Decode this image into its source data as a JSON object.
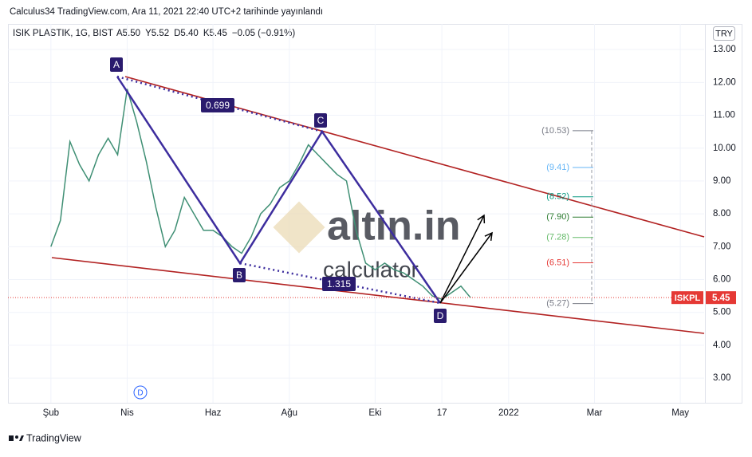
{
  "header": {
    "publisher": "Calculus34 TradingView.com, Ara 11, 2021 22:40 UTC+2 tarihinde yayınlandı",
    "symbol": "ISIK PLASTIK, 1G, BIST",
    "ohlc": [
      "A5.50",
      "Y5.52",
      "D5.40",
      "K5.45",
      "−0.05 (−0.91%)"
    ],
    "currency": "TRY"
  },
  "chart_data": {
    "type": "line",
    "color": "#3f8f74",
    "categories": [
      null,
      null,
      null,
      null,
      "Şub",
      null,
      null,
      null,
      null,
      null,
      null,
      null,
      "Nis",
      null,
      null,
      null,
      null,
      null,
      null,
      null,
      null,
      "Haz",
      null,
      null,
      null,
      null,
      null,
      null,
      null,
      "Ağu",
      null,
      null,
      null,
      null,
      null,
      null,
      null,
      null,
      "Eki",
      null,
      null,
      null,
      null,
      null,
      null,
      "17",
      null,
      null,
      null,
      null,
      null,
      null,
      "2022",
      null,
      null,
      null,
      null,
      null,
      null,
      null,
      null,
      "Mar",
      null,
      null,
      null,
      null,
      null,
      null,
      null,
      null,
      "May",
      null,
      null
    ],
    "values": [
      null,
      null,
      null,
      null,
      7.0,
      7.8,
      10.2,
      9.5,
      9.0,
      9.8,
      10.3,
      9.8,
      11.8,
      10.8,
      9.6,
      8.2,
      7.0,
      7.5,
      8.5,
      8.0,
      7.5,
      7.5,
      7.3,
      7.0,
      6.8,
      7.3,
      8.0,
      8.3,
      8.8,
      9.0,
      9.5,
      10.1,
      9.8,
      9.5,
      9.2,
      9.0,
      7.5,
      6.5,
      6.3,
      6.5,
      6.3,
      6.2,
      6.0,
      5.8,
      5.5,
      5.4,
      5.6,
      5.8,
      5.45,
      null,
      null,
      null,
      null,
      null,
      null,
      null,
      null,
      null,
      null,
      null,
      null,
      null,
      null,
      null,
      null,
      null,
      null,
      null,
      null,
      null,
      null,
      null,
      null
    ],
    "ylim": [
      2.25,
      13.78
    ],
    "yticks": [
      {
        "value": 3,
        "label": "3.00"
      },
      {
        "value": 4,
        "label": "4.00"
      },
      {
        "value": 5,
        "label": "5.00"
      },
      {
        "value": 6,
        "label": "6.00"
      },
      {
        "value": 7,
        "label": "7.00"
      },
      {
        "value": 8,
        "label": "8.00"
      },
      {
        "value": 9,
        "label": "9.00"
      },
      {
        "value": 10,
        "label": "10.00"
      },
      {
        "value": 11,
        "label": "11.00"
      },
      {
        "value": 12,
        "label": "12.00"
      },
      {
        "value": 13,
        "label": "13.00"
      }
    ],
    "grid": true,
    "last_price": {
      "ticker": "ISKPL",
      "value": 5.45,
      "label": "5.45",
      "color": "#e53935"
    },
    "levels": [
      {
        "value": 10.53,
        "label": "(10.53)",
        "color": "#787b86"
      },
      {
        "value": 9.41,
        "label": "(9.41)",
        "color": "#64b5f6"
      },
      {
        "value": 8.52,
        "label": "(8.52)",
        "color": "#089981"
      },
      {
        "value": 7.9,
        "label": "(7.90)",
        "color": "#2e7d32"
      },
      {
        "value": 7.28,
        "label": "(7.28)",
        "color": "#66bb6a"
      },
      {
        "value": 6.51,
        "label": "(6.51)",
        "color": "#e53935"
      },
      {
        "value": 5.27,
        "label": "(5.27)",
        "color": "#787b86"
      }
    ],
    "pattern_labels": [
      "A",
      "B",
      "C",
      "D"
    ],
    "ratios": [
      "0.699",
      "1.315"
    ],
    "event_marker": "D",
    "watermark": [
      "altin.in",
      "calculator"
    ]
  },
  "footer": "TradingView"
}
